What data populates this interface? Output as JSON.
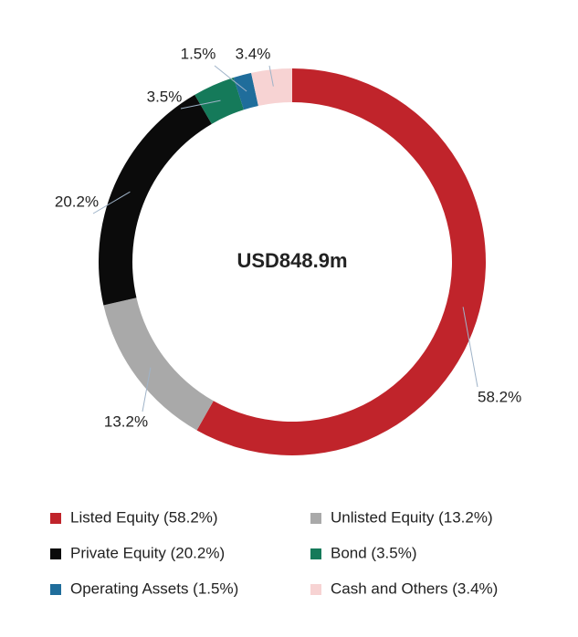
{
  "chart_data": {
    "type": "pie",
    "donut": true,
    "center_label": "USD848.9m",
    "categories": [
      "Listed Equity (58.2%)",
      "Unlisted Equity (13.2%)",
      "Private Equity (20.2%)",
      "Bond (3.5%)",
      "Operating Assets (1.5%)",
      "Cash and Others (3.4%)"
    ],
    "values": [
      58.2,
      13.2,
      20.2,
      3.5,
      1.5,
      3.4
    ],
    "value_labels": [
      "58.2%",
      "13.2%",
      "20.2%",
      "3.5%",
      "1.5%",
      "3.4%"
    ],
    "colors": [
      "#c0242b",
      "#a9a9a9",
      "#0b0b0b",
      "#157a5a",
      "#1f6d9b",
      "#f7d3d3"
    ]
  }
}
